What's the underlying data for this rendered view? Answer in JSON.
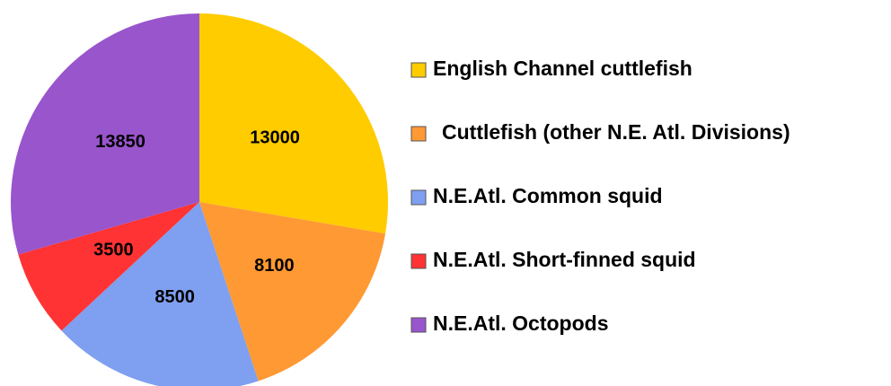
{
  "chart_data": {
    "type": "pie",
    "categories": [
      "English Channel cuttlefish",
      "Cuttlefish (other N.E. Atl. Divisions)",
      "N.E.Atl. Common squid",
      "N.E.Atl. Short-finned squid",
      "N.E.Atl. Octopods"
    ],
    "values": [
      13000,
      8100,
      8500,
      3500,
      13850
    ],
    "colors": [
      "#ffcc00",
      "#ff9933",
      "#7f9ff0",
      "#ff3333",
      "#9955cc"
    ],
    "legend": "right"
  }
}
